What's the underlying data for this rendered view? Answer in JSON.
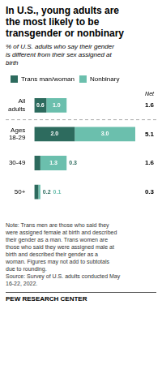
{
  "chart_data": {
    "type": "bar",
    "orientation": "horizontal",
    "stacked": true,
    "title": "In U.S., young adults are\nthe most likely to be\ntransgender or nonbinary",
    "subtitle": "% of U.S. adults who say their gender\nis different from their sex assigned at\nbirth",
    "categories": [
      "All\nadults",
      "Ages\n18-29",
      "30-49",
      "50+"
    ],
    "series": [
      {
        "name": "Trans man/woman",
        "color": "#2D6B5E",
        "values": [
          0.6,
          2.0,
          0.3,
          0.2
        ],
        "value_labels": [
          "0.6",
          "2.0",
          "0.3",
          "0.2"
        ]
      },
      {
        "name": "Nonbinary",
        "color": "#6BBFAD",
        "values": [
          1.0,
          3.0,
          1.3,
          0.1
        ],
        "value_labels": [
          "1.0",
          "3.0",
          "1.3",
          "0.1"
        ]
      }
    ],
    "net_label": "Net",
    "net_values": [
      1.6,
      5.1,
      1.6,
      0.3
    ],
    "xlim": [
      0,
      5
    ],
    "tick_labels": "y",
    "grid": false,
    "legend": "upper left",
    "data_labels": true,
    "note": "Note: Trans men are those who said they\nwere assigned female at birth and described\ntheir gender as a man. Trans women are\nthose who said they were assigned male at\nbirth and described their gender as a\nwoman. Figures may not add to subtotals\ndue to rounding.",
    "source": "Source: Survey of U.S. adults conducted May\n16-22, 2022.",
    "footer": "PEW RESEARCH CENTER"
  }
}
